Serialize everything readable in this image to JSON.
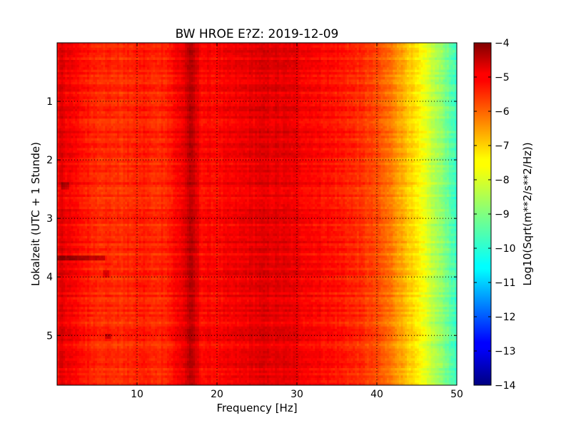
{
  "chart_data": {
    "type": "heatmap",
    "title": "BW HROE E?Z: 2019-12-09",
    "xlabel": "Frequency [Hz]",
    "ylabel": "Lokalzeit (UTC + 1 Stunde)",
    "colorbar_label": "Log10(Sqrt(m**2/s**2/Hz))",
    "xlim": [
      0,
      50
    ],
    "ylim": [
      0,
      5.85
    ],
    "y_inverted": true,
    "xticks": [
      10,
      20,
      30,
      40,
      50
    ],
    "yticks": [
      1,
      2,
      3,
      4,
      5
    ],
    "colorbar_range": [
      -14,
      -4
    ],
    "colorbar_ticks": [
      -4,
      -5,
      -6,
      -7,
      -8,
      -9,
      -10,
      -11,
      -12,
      -13,
      -14
    ],
    "colormap": "jet",
    "grid": true,
    "spectrum_profile": {
      "frequency_hz": [
        0,
        0.5,
        1,
        3,
        5,
        8,
        10,
        11,
        12,
        14,
        16,
        16.5,
        17,
        17.5,
        18,
        20,
        22,
        25,
        27,
        30,
        33,
        36,
        38,
        40,
        42,
        44,
        45,
        46,
        47,
        48,
        49,
        50
      ],
      "log10_amplitude": [
        -5.4,
        -4.8,
        -5.1,
        -5.4,
        -5.6,
        -5.7,
        -5.6,
        -5.5,
        -5.7,
        -5.5,
        -5.0,
        -4.6,
        -4.7,
        -5.0,
        -5.3,
        -5.3,
        -5.2,
        -5.0,
        -5.0,
        -5.1,
        -5.3,
        -5.5,
        -5.7,
        -6.0,
        -6.5,
        -7.2,
        -7.6,
        -8.0,
        -8.4,
        -8.8,
        -9.2,
        -9.8
      ]
    },
    "features": [
      {
        "type": "time_band",
        "start_h": 3.64,
        "end_h": 3.72,
        "freq_max_hz": 6,
        "delta": 0.9
      },
      {
        "type": "spot",
        "time_h": 5.02,
        "freq_hz": 6.3,
        "delta": 0.8
      },
      {
        "type": "spot",
        "time_h": 3.95,
        "freq_hz": 6.2,
        "delta": 0.6
      },
      {
        "type": "spot",
        "time_h": 2.45,
        "freq_hz": 1.0,
        "delta": 0.6
      }
    ]
  },
  "colors": {
    "jet": [
      "#000080",
      "#0000ff",
      "#00ffff",
      "#ffff00",
      "#ff0000",
      "#800000"
    ],
    "grid": "#000000"
  }
}
